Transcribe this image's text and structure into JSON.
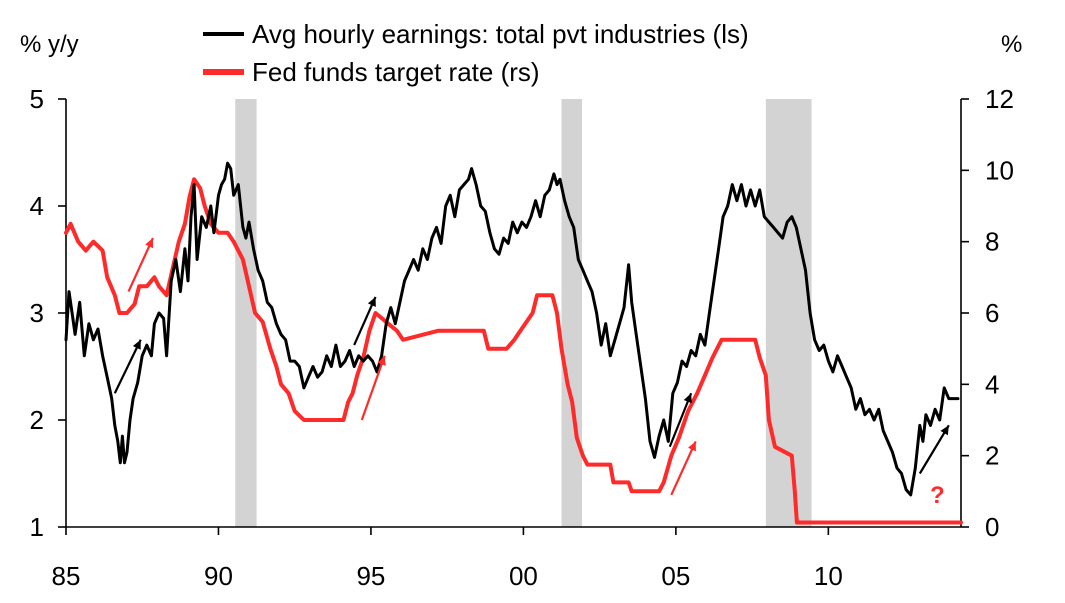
{
  "chart_data": {
    "type": "line",
    "left_unit": "% y/y",
    "right_unit": "%",
    "x_ticks": [
      {
        "year": 1985,
        "label": "85"
      },
      {
        "year": 1990,
        "label": "90"
      },
      {
        "year": 1995,
        "label": "95"
      },
      {
        "year": 2000,
        "label": "00"
      },
      {
        "year": 2005,
        "label": "05"
      },
      {
        "year": 2010,
        "label": "10"
      }
    ],
    "xlim": [
      1985,
      2014.35
    ],
    "y_left": {
      "ticks": [
        "1",
        "2",
        "3",
        "4",
        "5"
      ],
      "lim": [
        1,
        5
      ]
    },
    "y_right": {
      "ticks": [
        "0",
        "2",
        "4",
        "6",
        "8",
        "10",
        "12"
      ],
      "lim": [
        0,
        12
      ]
    },
    "recessions": [
      [
        1990.55,
        1991.25
      ],
      [
        2001.25,
        2001.92
      ],
      [
        2007.95,
        2009.45
      ]
    ],
    "annotation": "?",
    "colors": {
      "earnings": "#000000",
      "fed": "#ff2a2a",
      "recession": "#d3d3d3",
      "axis": "#000000"
    },
    "series": [
      {
        "name": "Avg hourly earnings: total pvt industries (ls)",
        "axis": "left",
        "points": [
          [
            1985.0,
            2.75
          ],
          [
            1985.1,
            3.2
          ],
          [
            1985.2,
            3.0
          ],
          [
            1985.3,
            2.8
          ],
          [
            1985.45,
            3.1
          ],
          [
            1985.6,
            2.6
          ],
          [
            1985.75,
            2.9
          ],
          [
            1985.9,
            2.75
          ],
          [
            1986.05,
            2.85
          ],
          [
            1986.2,
            2.6
          ],
          [
            1986.35,
            2.4
          ],
          [
            1986.5,
            2.2
          ],
          [
            1986.6,
            1.95
          ],
          [
            1986.7,
            1.8
          ],
          [
            1986.78,
            1.6
          ],
          [
            1986.85,
            1.85
          ],
          [
            1986.92,
            1.6
          ],
          [
            1987.0,
            1.7
          ],
          [
            1987.1,
            2.0
          ],
          [
            1987.2,
            2.2
          ],
          [
            1987.35,
            2.35
          ],
          [
            1987.5,
            2.6
          ],
          [
            1987.65,
            2.7
          ],
          [
            1987.8,
            2.6
          ],
          [
            1987.9,
            2.9
          ],
          [
            1988.05,
            3.0
          ],
          [
            1988.2,
            2.95
          ],
          [
            1988.3,
            2.6
          ],
          [
            1988.45,
            3.3
          ],
          [
            1988.6,
            3.5
          ],
          [
            1988.75,
            3.2
          ],
          [
            1988.9,
            3.6
          ],
          [
            1989.0,
            3.3
          ],
          [
            1989.1,
            3.9
          ],
          [
            1989.2,
            4.2
          ],
          [
            1989.3,
            3.5
          ],
          [
            1989.45,
            3.9
          ],
          [
            1989.6,
            3.8
          ],
          [
            1989.75,
            4.0
          ],
          [
            1989.85,
            3.75
          ],
          [
            1990.0,
            4.1
          ],
          [
            1990.1,
            4.2
          ],
          [
            1990.2,
            4.25
          ],
          [
            1990.3,
            4.4
          ],
          [
            1990.4,
            4.35
          ],
          [
            1990.5,
            4.1
          ],
          [
            1990.65,
            4.2
          ],
          [
            1990.8,
            3.8
          ],
          [
            1990.9,
            3.7
          ],
          [
            1991.0,
            3.85
          ],
          [
            1991.15,
            3.6
          ],
          [
            1991.3,
            3.4
          ],
          [
            1991.45,
            3.3
          ],
          [
            1991.6,
            3.1
          ],
          [
            1991.75,
            3.05
          ],
          [
            1991.9,
            2.9
          ],
          [
            1992.05,
            2.8
          ],
          [
            1992.2,
            2.75
          ],
          [
            1992.35,
            2.55
          ],
          [
            1992.5,
            2.55
          ],
          [
            1992.65,
            2.5
          ],
          [
            1992.8,
            2.3
          ],
          [
            1992.95,
            2.4
          ],
          [
            1993.1,
            2.5
          ],
          [
            1993.25,
            2.4
          ],
          [
            1993.4,
            2.45
          ],
          [
            1993.55,
            2.6
          ],
          [
            1993.7,
            2.5
          ],
          [
            1993.85,
            2.7
          ],
          [
            1994.0,
            2.5
          ],
          [
            1994.15,
            2.55
          ],
          [
            1994.3,
            2.65
          ],
          [
            1994.45,
            2.5
          ],
          [
            1994.6,
            2.6
          ],
          [
            1994.75,
            2.55
          ],
          [
            1994.9,
            2.6
          ],
          [
            1995.05,
            2.55
          ],
          [
            1995.2,
            2.45
          ],
          [
            1995.35,
            2.6
          ],
          [
            1995.5,
            2.9
          ],
          [
            1995.65,
            3.05
          ],
          [
            1995.8,
            2.9
          ],
          [
            1995.95,
            3.1
          ],
          [
            1996.1,
            3.3
          ],
          [
            1996.25,
            3.4
          ],
          [
            1996.4,
            3.5
          ],
          [
            1996.55,
            3.4
          ],
          [
            1996.7,
            3.6
          ],
          [
            1996.85,
            3.5
          ],
          [
            1997.0,
            3.7
          ],
          [
            1997.15,
            3.8
          ],
          [
            1997.3,
            3.65
          ],
          [
            1997.45,
            4.0
          ],
          [
            1997.6,
            4.1
          ],
          [
            1997.75,
            3.9
          ],
          [
            1997.9,
            4.15
          ],
          [
            1998.05,
            4.2
          ],
          [
            1998.2,
            4.25
          ],
          [
            1998.3,
            4.35
          ],
          [
            1998.45,
            4.2
          ],
          [
            1998.6,
            4.0
          ],
          [
            1998.75,
            3.95
          ],
          [
            1998.9,
            3.75
          ],
          [
            1999.05,
            3.6
          ],
          [
            1999.2,
            3.55
          ],
          [
            1999.35,
            3.7
          ],
          [
            1999.5,
            3.65
          ],
          [
            1999.65,
            3.85
          ],
          [
            1999.8,
            3.75
          ],
          [
            1999.95,
            3.85
          ],
          [
            2000.1,
            3.8
          ],
          [
            2000.25,
            3.9
          ],
          [
            2000.4,
            4.05
          ],
          [
            2000.55,
            3.9
          ],
          [
            2000.7,
            4.1
          ],
          [
            2000.85,
            4.15
          ],
          [
            2001.0,
            4.3
          ],
          [
            2001.1,
            4.2
          ],
          [
            2001.2,
            4.25
          ],
          [
            2001.35,
            4.05
          ],
          [
            2001.5,
            3.9
          ],
          [
            2001.65,
            3.8
          ],
          [
            2001.8,
            3.5
          ],
          [
            2001.95,
            3.4
          ],
          [
            2002.1,
            3.3
          ],
          [
            2002.25,
            3.2
          ],
          [
            2002.4,
            3.0
          ],
          [
            2002.55,
            2.7
          ],
          [
            2002.7,
            2.9
          ],
          [
            2002.85,
            2.6
          ],
          [
            2003.0,
            2.75
          ],
          [
            2003.15,
            2.9
          ],
          [
            2003.3,
            3.05
          ],
          [
            2003.45,
            3.45
          ],
          [
            2003.55,
            3.1
          ],
          [
            2003.7,
            2.8
          ],
          [
            2003.85,
            2.5
          ],
          [
            2004.0,
            2.2
          ],
          [
            2004.15,
            1.8
          ],
          [
            2004.3,
            1.65
          ],
          [
            2004.45,
            1.85
          ],
          [
            2004.6,
            2.0
          ],
          [
            2004.75,
            1.8
          ],
          [
            2004.9,
            2.25
          ],
          [
            2005.05,
            2.35
          ],
          [
            2005.2,
            2.55
          ],
          [
            2005.35,
            2.5
          ],
          [
            2005.5,
            2.65
          ],
          [
            2005.65,
            2.6
          ],
          [
            2005.8,
            2.8
          ],
          [
            2005.95,
            2.7
          ],
          [
            2006.1,
            3.0
          ],
          [
            2006.25,
            3.3
          ],
          [
            2006.4,
            3.6
          ],
          [
            2006.55,
            3.9
          ],
          [
            2006.7,
            4.0
          ],
          [
            2006.85,
            4.2
          ],
          [
            2007.0,
            4.05
          ],
          [
            2007.15,
            4.2
          ],
          [
            2007.3,
            4.0
          ],
          [
            2007.45,
            4.15
          ],
          [
            2007.6,
            4.0
          ],
          [
            2007.75,
            4.15
          ],
          [
            2007.9,
            3.9
          ],
          [
            2008.05,
            3.85
          ],
          [
            2008.2,
            3.8
          ],
          [
            2008.35,
            3.75
          ],
          [
            2008.5,
            3.7
          ],
          [
            2008.65,
            3.85
          ],
          [
            2008.8,
            3.9
          ],
          [
            2008.95,
            3.8
          ],
          [
            2009.1,
            3.6
          ],
          [
            2009.25,
            3.4
          ],
          [
            2009.4,
            3.0
          ],
          [
            2009.55,
            2.75
          ],
          [
            2009.7,
            2.65
          ],
          [
            2009.85,
            2.7
          ],
          [
            2010.0,
            2.55
          ],
          [
            2010.15,
            2.45
          ],
          [
            2010.3,
            2.6
          ],
          [
            2010.45,
            2.5
          ],
          [
            2010.6,
            2.4
          ],
          [
            2010.75,
            2.3
          ],
          [
            2010.9,
            2.1
          ],
          [
            2011.05,
            2.2
          ],
          [
            2011.2,
            2.05
          ],
          [
            2011.35,
            2.1
          ],
          [
            2011.5,
            2.0
          ],
          [
            2011.65,
            2.1
          ],
          [
            2011.8,
            1.9
          ],
          [
            2011.95,
            1.8
          ],
          [
            2012.1,
            1.7
          ],
          [
            2012.25,
            1.55
          ],
          [
            2012.4,
            1.5
          ],
          [
            2012.55,
            1.35
          ],
          [
            2012.7,
            1.3
          ],
          [
            2012.85,
            1.55
          ],
          [
            2013.0,
            1.95
          ],
          [
            2013.1,
            1.8
          ],
          [
            2013.2,
            2.05
          ],
          [
            2013.35,
            1.95
          ],
          [
            2013.5,
            2.1
          ],
          [
            2013.65,
            2.0
          ],
          [
            2013.8,
            2.3
          ],
          [
            2013.95,
            2.2
          ],
          [
            2014.1,
            2.2
          ],
          [
            2014.25,
            2.2
          ]
        ]
      },
      {
        "name": "Fed funds target rate (rs)",
        "axis": "right",
        "points": [
          [
            1985.0,
            8.25
          ],
          [
            1985.15,
            8.5
          ],
          [
            1985.4,
            8.0
          ],
          [
            1985.65,
            7.75
          ],
          [
            1985.9,
            8.0
          ],
          [
            1986.2,
            7.75
          ],
          [
            1986.35,
            7.0
          ],
          [
            1986.6,
            6.5
          ],
          [
            1986.75,
            6.0
          ],
          [
            1987.0,
            6.0
          ],
          [
            1987.25,
            6.25
          ],
          [
            1987.4,
            6.75
          ],
          [
            1987.65,
            6.75
          ],
          [
            1987.9,
            7.0
          ],
          [
            1988.05,
            6.75
          ],
          [
            1988.3,
            6.5
          ],
          [
            1988.5,
            7.25
          ],
          [
            1988.7,
            8.0
          ],
          [
            1988.9,
            8.5
          ],
          [
            1989.05,
            9.25
          ],
          [
            1989.2,
            9.75
          ],
          [
            1989.4,
            9.5
          ],
          [
            1989.55,
            9.0
          ],
          [
            1989.75,
            8.5
          ],
          [
            1990.0,
            8.25
          ],
          [
            1990.3,
            8.25
          ],
          [
            1990.5,
            8.0
          ],
          [
            1990.8,
            7.5
          ],
          [
            1991.0,
            6.75
          ],
          [
            1991.2,
            6.0
          ],
          [
            1991.45,
            5.75
          ],
          [
            1991.7,
            5.0
          ],
          [
            1991.9,
            4.5
          ],
          [
            1992.05,
            4.0
          ],
          [
            1992.3,
            3.75
          ],
          [
            1992.5,
            3.25
          ],
          [
            1992.8,
            3.0
          ],
          [
            1994.1,
            3.0
          ],
          [
            1994.25,
            3.5
          ],
          [
            1994.4,
            3.75
          ],
          [
            1994.55,
            4.25
          ],
          [
            1994.75,
            4.75
          ],
          [
            1994.95,
            5.5
          ],
          [
            1995.15,
            6.0
          ],
          [
            1995.5,
            5.75
          ],
          [
            1995.85,
            5.5
          ],
          [
            1996.05,
            5.25
          ],
          [
            1997.2,
            5.5
          ],
          [
            1998.7,
            5.5
          ],
          [
            1998.85,
            5.0
          ],
          [
            1999.45,
            5.0
          ],
          [
            1999.7,
            5.25
          ],
          [
            1999.9,
            5.5
          ],
          [
            2000.1,
            5.75
          ],
          [
            2000.3,
            6.0
          ],
          [
            2000.45,
            6.5
          ],
          [
            2000.95,
            6.5
          ],
          [
            2001.1,
            6.0
          ],
          [
            2001.25,
            5.0
          ],
          [
            2001.45,
            4.0
          ],
          [
            2001.6,
            3.5
          ],
          [
            2001.75,
            2.5
          ],
          [
            2001.95,
            2.0
          ],
          [
            2002.1,
            1.75
          ],
          [
            2002.85,
            1.75
          ],
          [
            2002.95,
            1.25
          ],
          [
            2003.45,
            1.25
          ],
          [
            2003.55,
            1.0
          ],
          [
            2004.45,
            1.0
          ],
          [
            2004.6,
            1.25
          ],
          [
            2004.85,
            2.0
          ],
          [
            2005.1,
            2.5
          ],
          [
            2005.4,
            3.25
          ],
          [
            2005.7,
            3.75
          ],
          [
            2005.95,
            4.25
          ],
          [
            2006.2,
            4.75
          ],
          [
            2006.5,
            5.25
          ],
          [
            2007.6,
            5.25
          ],
          [
            2007.75,
            4.75
          ],
          [
            2007.95,
            4.25
          ],
          [
            2008.05,
            3.0
          ],
          [
            2008.25,
            2.25
          ],
          [
            2008.8,
            2.0
          ],
          [
            2008.9,
            1.0
          ],
          [
            2008.97,
            0.125
          ],
          [
            2014.35,
            0.125
          ]
        ]
      }
    ]
  },
  "legend": {
    "earnings_label": "Avg hourly earnings: total pvt industries (ls)",
    "fed_label": "Fed funds target rate (rs)"
  }
}
